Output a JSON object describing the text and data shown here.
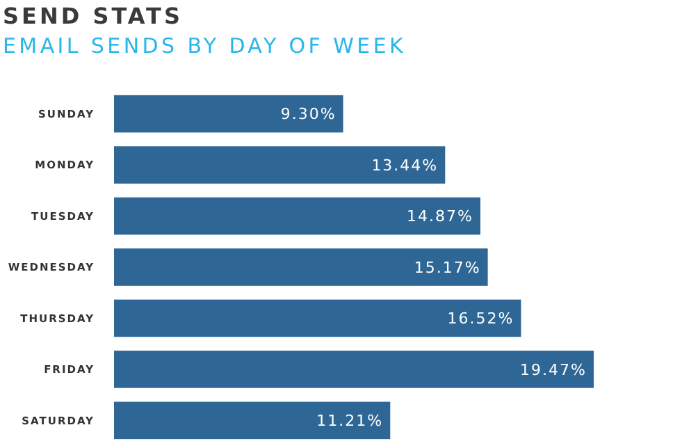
{
  "chart_data": {
    "type": "bar",
    "orientation": "horizontal",
    "title": "SEND STATS",
    "subtitle": "EMAIL SENDS BY DAY OF WEEK",
    "categories": [
      "SUNDAY",
      "MONDAY",
      "TUESDAY",
      "WEDNESDAY",
      "THURSDAY",
      "FRIDAY",
      "SATURDAY"
    ],
    "values": [
      9.3,
      13.44,
      14.87,
      15.17,
      16.52,
      19.47,
      11.21
    ],
    "value_labels": [
      "9.30%",
      "13.44%",
      "14.87%",
      "15.17%",
      "16.52%",
      "19.47%",
      "11.21%"
    ],
    "color": "#2e6696"
  }
}
